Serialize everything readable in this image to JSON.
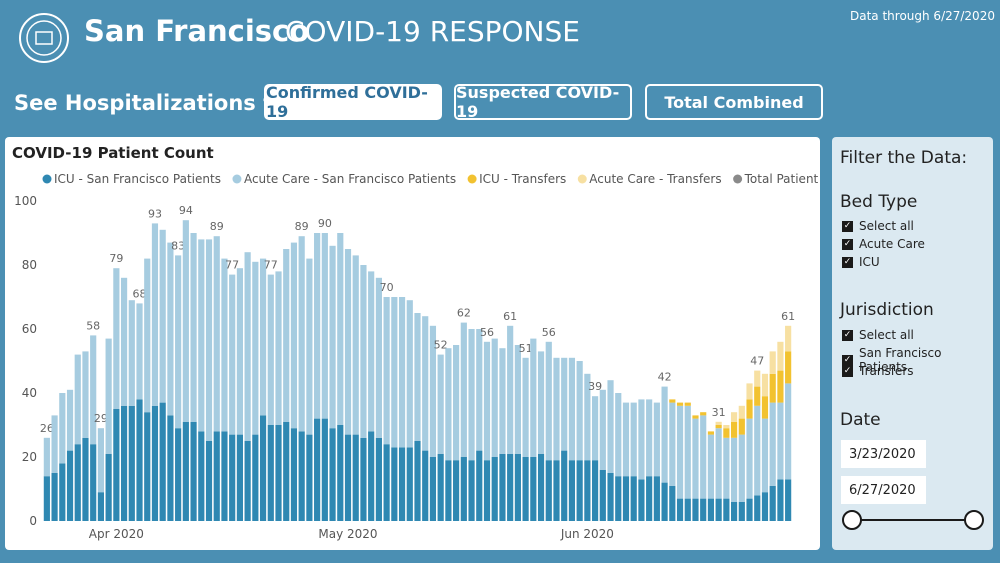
{
  "header": {
    "title": "San Francisco",
    "subtitle": "COVID-19 RESPONSE",
    "data_through": "Data through 6/27/2020"
  },
  "toggles": {
    "label": "See Hospitalizations for:",
    "buttons": [
      "Confirmed COVID-19",
      "Suspected COVID-19",
      "Total Combined"
    ]
  },
  "filter": {
    "title": "Filter the Data:",
    "bed_type": {
      "title": "Bed Type",
      "options": [
        "Select all",
        "Acute Care",
        "ICU"
      ]
    },
    "jurisdiction": {
      "title": "Jurisdiction",
      "options": [
        "Select all",
        "San Francisco Patients",
        "Transfers"
      ]
    },
    "date": {
      "title": "Date",
      "start": "3/23/2020",
      "end": "6/27/2020"
    }
  },
  "chart_data": {
    "type": "stacked_bar",
    "title": "COVID-19 Patient Count",
    "categories": [
      null,
      null,
      null,
      null,
      null,
      null,
      null,
      null,
      null,
      "Apr 2020",
      null,
      null,
      null,
      null,
      null,
      null,
      null,
      null,
      null,
      null,
      null,
      null,
      null,
      null,
      null,
      null,
      null,
      null,
      null,
      null,
      null,
      null,
      null,
      null,
      null,
      null,
      null,
      null,
      null,
      "May 2020",
      null,
      null,
      null,
      null,
      null,
      null,
      null,
      null,
      null,
      null,
      null,
      null,
      null,
      null,
      null,
      null,
      null,
      null,
      null,
      null,
      null,
      null,
      null,
      null,
      null,
      null,
      null,
      null,
      null,
      null,
      "Jun 2020",
      null,
      null,
      null,
      null,
      null,
      null,
      null,
      null,
      null,
      null,
      null,
      null,
      null,
      null,
      null,
      null,
      null,
      null,
      null,
      null,
      null,
      null,
      null,
      null,
      null,
      null
    ],
    "ylim": [
      0,
      100
    ],
    "yticks": [
      0,
      20,
      40,
      60,
      80,
      100
    ],
    "grid": false,
    "series": [
      {
        "name": "ICU - San Francisco Patients",
        "color": "#2f88b2",
        "values": [
          14,
          15,
          18,
          22,
          24,
          26,
          24,
          9,
          21,
          35,
          36,
          36,
          38,
          34,
          36,
          37,
          33,
          29,
          31,
          31,
          28,
          25,
          28,
          28,
          27,
          27,
          25,
          27,
          33,
          30,
          30,
          31,
          29,
          28,
          27,
          32,
          32,
          29,
          30,
          27,
          27,
          26,
          28,
          26,
          24,
          23,
          23,
          23,
          25,
          22,
          20,
          21,
          19,
          19,
          20,
          19,
          22,
          19,
          20,
          21,
          21,
          21,
          20,
          20,
          21,
          19,
          19,
          22,
          19,
          19,
          19,
          19,
          16,
          15,
          14,
          14,
          14,
          13,
          14,
          14,
          12,
          11,
          7,
          7,
          7,
          7,
          7,
          7,
          7,
          6,
          6,
          7,
          8,
          9,
          11,
          13,
          13
        ]
      },
      {
        "name": "Acute Care - San Francisco Patients",
        "color": "#a6cce0",
        "values": [
          12,
          18,
          22,
          19,
          28,
          27,
          34,
          20,
          36,
          44,
          40,
          33,
          30,
          48,
          57,
          54,
          54,
          54,
          63,
          59,
          60,
          63,
          61,
          54,
          50,
          52,
          59,
          54,
          49,
          47,
          48,
          54,
          58,
          61,
          55,
          58,
          58,
          57,
          60,
          58,
          56,
          54,
          50,
          50,
          46,
          47,
          47,
          46,
          40,
          42,
          41,
          31,
          35,
          36,
          42,
          41,
          38,
          37,
          37,
          33,
          40,
          34,
          31,
          37,
          32,
          37,
          32,
          29,
          32,
          31,
          27,
          20,
          25,
          29,
          26,
          23,
          23,
          25,
          24,
          23,
          30,
          26,
          29,
          29,
          25,
          26,
          20,
          22,
          19,
          20,
          21,
          25,
          28,
          23,
          26,
          24,
          30
        ]
      },
      {
        "name": "ICU - Transfers",
        "color": "#f2c230",
        "values": [
          0,
          0,
          0,
          0,
          0,
          0,
          0,
          0,
          0,
          0,
          0,
          0,
          0,
          0,
          0,
          0,
          0,
          0,
          0,
          0,
          0,
          0,
          0,
          0,
          0,
          0,
          0,
          0,
          0,
          0,
          0,
          0,
          0,
          0,
          0,
          0,
          0,
          0,
          0,
          0,
          0,
          0,
          0,
          0,
          0,
          0,
          0,
          0,
          0,
          0,
          0,
          0,
          0,
          0,
          0,
          0,
          0,
          0,
          0,
          0,
          0,
          0,
          0,
          0,
          0,
          0,
          0,
          0,
          0,
          0,
          0,
          0,
          0,
          0,
          0,
          0,
          0,
          0,
          0,
          0,
          0,
          1,
          1,
          1,
          1,
          1,
          1,
          1,
          3,
          5,
          5,
          6,
          6,
          7,
          9,
          10,
          10
        ]
      },
      {
        "name": "Acute Care - Transfers",
        "color": "#f7e0a2",
        "values": [
          0,
          0,
          0,
          0,
          0,
          0,
          0,
          0,
          0,
          0,
          0,
          0,
          0,
          0,
          0,
          0,
          0,
          0,
          0,
          0,
          0,
          0,
          0,
          0,
          0,
          0,
          0,
          0,
          0,
          0,
          0,
          0,
          0,
          0,
          0,
          0,
          0,
          0,
          0,
          0,
          0,
          0,
          0,
          0,
          0,
          0,
          0,
          0,
          0,
          0,
          0,
          0,
          0,
          0,
          0,
          0,
          0,
          0,
          0,
          0,
          0,
          0,
          0,
          0,
          0,
          0,
          0,
          0,
          0,
          0,
          0,
          0,
          0,
          0,
          0,
          0,
          0,
          0,
          0,
          0,
          0,
          0,
          0,
          0,
          0,
          0,
          0,
          1,
          1,
          3,
          4,
          5,
          5,
          7,
          7,
          9,
          8
        ]
      },
      {
        "name": "Total Patient Count",
        "color": "#8a8a8a",
        "kind": "labels",
        "values": [
          26,
          null,
          null,
          null,
          null,
          null,
          58,
          29,
          null,
          79,
          null,
          null,
          68,
          null,
          93,
          null,
          null,
          83,
          94,
          null,
          null,
          null,
          89,
          null,
          77,
          null,
          null,
          null,
          null,
          77,
          null,
          null,
          null,
          89,
          null,
          null,
          90,
          null,
          null,
          null,
          null,
          null,
          null,
          null,
          70,
          null,
          null,
          null,
          null,
          null,
          null,
          52,
          null,
          null,
          62,
          null,
          null,
          56,
          null,
          null,
          61,
          null,
          51,
          null,
          null,
          56,
          null,
          null,
          null,
          null,
          null,
          39,
          null,
          null,
          null,
          null,
          null,
          null,
          null,
          null,
          42,
          null,
          null,
          null,
          null,
          null,
          null,
          31,
          null,
          null,
          null,
          null,
          47,
          null,
          null,
          null,
          61
        ]
      }
    ]
  }
}
